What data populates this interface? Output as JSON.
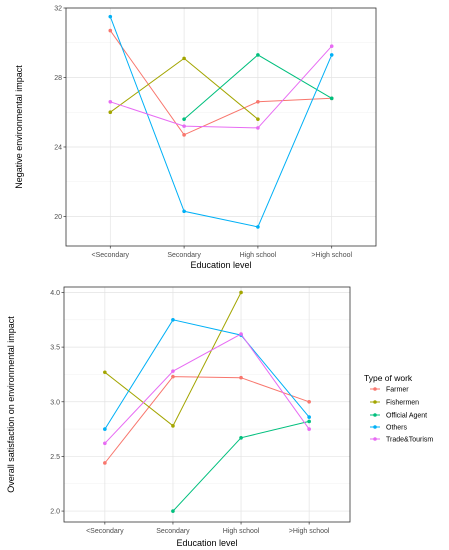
{
  "colors": {
    "Farmer": "#F8766D",
    "Fishermen": "#A3A500",
    "Official Agent": "#00BF7D",
    "Others": "#00B0F6",
    "Trade&Tourism": "#E76BF3"
  },
  "legend": {
    "title": "Type of work",
    "entries": [
      "Farmer",
      "Fishermen",
      "Official Agent",
      "Others",
      "Trade&Tourism"
    ]
  },
  "chart_data": [
    {
      "type": "line",
      "categories": [
        "<Secondary",
        "Secondary",
        "High school",
        ">High school"
      ],
      "xlabel": "Education level",
      "ylabel": "Negative environmental impact",
      "ylim": [
        18.3,
        32
      ],
      "yticks": [
        20,
        24,
        28,
        32
      ],
      "grid": true,
      "series": [
        {
          "name": "Farmer",
          "values": [
            30.7,
            24.7,
            26.6,
            26.8
          ]
        },
        {
          "name": "Fishermen",
          "values": [
            26.0,
            29.1,
            25.6,
            null
          ]
        },
        {
          "name": "Official Agent",
          "values": [
            null,
            25.6,
            29.3,
            26.8
          ]
        },
        {
          "name": "Others",
          "values": [
            31.5,
            20.3,
            19.4,
            29.3
          ]
        },
        {
          "name": "Trade&Tourism",
          "values": [
            26.6,
            25.2,
            25.1,
            29.8
          ]
        }
      ]
    },
    {
      "type": "line",
      "categories": [
        "<Secondary",
        "Secondary",
        "High school",
        ">High school"
      ],
      "xlabel": "Education level",
      "ylabel": "Overall satisfaction on environmental impact",
      "ylim": [
        1.9,
        4.05
      ],
      "yticks": [
        "2.0",
        "2.5",
        "3.0",
        "3.5",
        "4.0"
      ],
      "grid": true,
      "legend_position": "right",
      "series": [
        {
          "name": "Farmer",
          "values": [
            2.44,
            3.23,
            3.22,
            3.0
          ]
        },
        {
          "name": "Fishermen",
          "values": [
            3.27,
            2.78,
            4.0,
            null
          ]
        },
        {
          "name": "Official Agent",
          "values": [
            null,
            2.0,
            2.67,
            2.82
          ]
        },
        {
          "name": "Others",
          "values": [
            2.75,
            3.75,
            3.61,
            2.86
          ]
        },
        {
          "name": "Trade&Tourism",
          "values": [
            2.62,
            3.28,
            3.62,
            2.75
          ]
        }
      ]
    }
  ]
}
